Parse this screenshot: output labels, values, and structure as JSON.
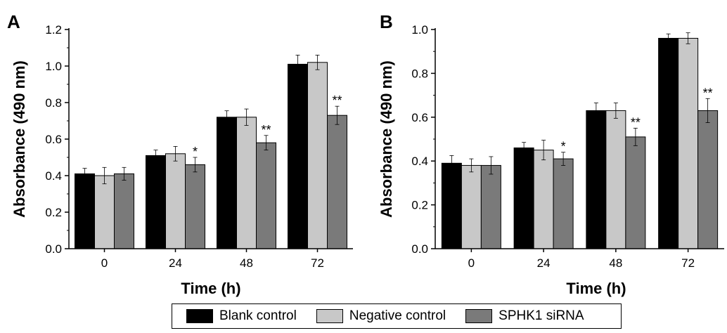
{
  "chart_data": [
    {
      "type": "bar",
      "panel_label": "A",
      "categories": [
        "0",
        "24",
        "48",
        "72"
      ],
      "xlabel": "Time (h)",
      "ylabel": "Absorbance (490 nm)",
      "ylim": [
        0,
        1.2
      ],
      "yticks": [
        "0.0",
        "0.2",
        "0.4",
        "0.6",
        "0.8",
        "1.0",
        "1.2"
      ],
      "series": [
        {
          "name": "Blank control",
          "values": [
            0.41,
            0.51,
            0.72,
            1.01
          ],
          "errors": [
            0.03,
            0.03,
            0.035,
            0.05
          ]
        },
        {
          "name": "Negative control",
          "values": [
            0.4,
            0.52,
            0.72,
            1.02
          ],
          "errors": [
            0.045,
            0.04,
            0.045,
            0.04
          ]
        },
        {
          "name": "SPHK1 siRNA",
          "values": [
            0.41,
            0.46,
            0.58,
            0.73
          ],
          "errors": [
            0.035,
            0.04,
            0.04,
            0.05
          ]
        }
      ],
      "annotations": [
        "",
        "*",
        "**",
        "**"
      ]
    },
    {
      "type": "bar",
      "panel_label": "B",
      "categories": [
        "0",
        "24",
        "48",
        "72"
      ],
      "xlabel": "Time (h)",
      "ylabel": "Absorbance (490 nm)",
      "ylim": [
        0,
        1.0
      ],
      "yticks": [
        "0.0",
        "0.2",
        "0.4",
        "0.6",
        "0.8",
        "1.0"
      ],
      "series": [
        {
          "name": "Blank control",
          "values": [
            0.39,
            0.46,
            0.63,
            0.96
          ],
          "errors": [
            0.035,
            0.025,
            0.035,
            0.02
          ]
        },
        {
          "name": "Negative control",
          "values": [
            0.38,
            0.45,
            0.63,
            0.96
          ],
          "errors": [
            0.03,
            0.045,
            0.035,
            0.025
          ]
        },
        {
          "name": "SPHK1 siRNA",
          "values": [
            0.38,
            0.41,
            0.51,
            0.63
          ],
          "errors": [
            0.04,
            0.03,
            0.04,
            0.055
          ]
        }
      ],
      "annotations": [
        "",
        "*",
        "**",
        "**"
      ]
    }
  ],
  "colors": {
    "Blank control": "#000000",
    "Negative control": "#c8c8c8",
    "SPHK1 siRNA": "#7a7a7a"
  },
  "legend": {
    "position": "bottom-center",
    "items": [
      "Blank control",
      "Negative control",
      "SPHK1 siRNA"
    ]
  }
}
